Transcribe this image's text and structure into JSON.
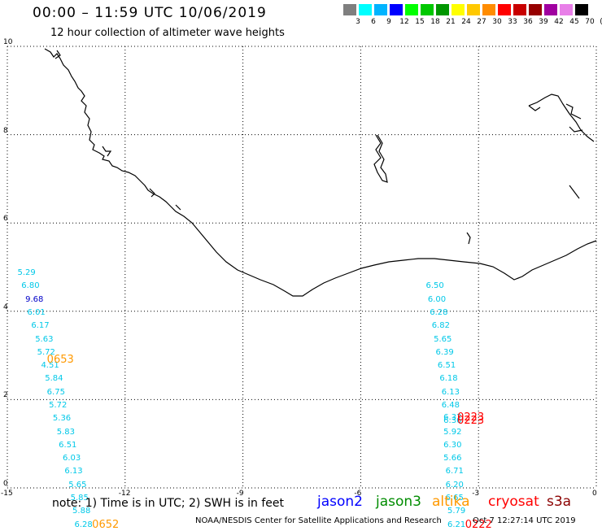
{
  "header": {
    "title": "00:00 – 11:59 UTC 10/06/2019",
    "subtitle": "12 hour collection of altimeter wave heights"
  },
  "color_scale": {
    "labels": [
      "3",
      "6",
      "9",
      "12",
      "15",
      "18",
      "21",
      "24",
      "27",
      "30",
      "33",
      "36",
      "39",
      "42",
      "45",
      "70",
      "(ft)"
    ],
    "colors": [
      "#7f7f7f",
      "#00ffff",
      "#00b4ff",
      "#0000ff",
      "#00ff00",
      "#00c800",
      "#009600",
      "#ffff00",
      "#ffc800",
      "#ff8c00",
      "#ff0000",
      "#c80000",
      "#960000",
      "#a000a0",
      "#e87fe8",
      "#000000"
    ]
  },
  "axes": {
    "x_ticks": [
      "-15",
      "-12",
      "-9",
      "-6",
      "-3",
      "0"
    ],
    "y_ticks": [
      "0",
      "2",
      "4",
      "6",
      "8",
      "10"
    ],
    "xlim": [
      -15,
      0
    ],
    "ylim": [
      0,
      10
    ]
  },
  "tracks": [
    {
      "name": "track-west",
      "satellite": "altika",
      "color": "#00c8e8",
      "points": [
        {
          "lon": -14.7,
          "lat": 4.75,
          "swh": "5.29"
        },
        {
          "lon": -14.6,
          "lat": 4.45,
          "swh": "6.80"
        },
        {
          "lon": -14.5,
          "lat": 4.15,
          "swh": "9.68",
          "color": "#0000c8"
        },
        {
          "lon": -14.45,
          "lat": 3.85,
          "swh": "6.01"
        },
        {
          "lon": -14.35,
          "lat": 3.55,
          "swh": "6.17"
        },
        {
          "lon": -14.25,
          "lat": 3.25,
          "swh": "5.63"
        },
        {
          "lon": -14.2,
          "lat": 2.95,
          "swh": "5.72"
        },
        {
          "lon": -14.1,
          "lat": 2.65,
          "swh": "4.51"
        },
        {
          "lon": -14.0,
          "lat": 2.35,
          "swh": "5.84"
        },
        {
          "lon": -13.95,
          "lat": 2.05,
          "swh": "6.75"
        },
        {
          "lon": -13.9,
          "lat": 1.75,
          "swh": "5.72"
        },
        {
          "lon": -13.8,
          "lat": 1.45,
          "swh": "5.36"
        },
        {
          "lon": -13.7,
          "lat": 1.15,
          "swh": "5.83"
        },
        {
          "lon": -13.65,
          "lat": 0.85,
          "swh": "6.51"
        },
        {
          "lon": -13.55,
          "lat": 0.55,
          "swh": "6.03"
        },
        {
          "lon": -13.5,
          "lat": 0.25,
          "swh": "6.13"
        },
        {
          "lon": -13.4,
          "lat": -0.05,
          "swh": "5.65"
        },
        {
          "lon": -13.35,
          "lat": -0.35,
          "swh": "5.85"
        },
        {
          "lon": -13.3,
          "lat": -0.65,
          "swh": "5.88"
        },
        {
          "lon": -13.25,
          "lat": -0.95,
          "swh": "6.28"
        }
      ],
      "times": [
        {
          "label": "0653",
          "lon": -13.95,
          "lat": 2.78
        },
        {
          "label": "0652",
          "lon": -12.8,
          "lat": -0.95
        }
      ]
    },
    {
      "name": "track-east",
      "satellite": "altika",
      "color": "#00c8e8",
      "points": [
        {
          "lon": -4.3,
          "lat": 4.45,
          "swh": "6.50"
        },
        {
          "lon": -4.25,
          "lat": 4.15,
          "swh": "6.00"
        },
        {
          "lon": -4.2,
          "lat": 3.85,
          "swh": "6.28"
        },
        {
          "lon": -4.15,
          "lat": 3.55,
          "swh": "6.82"
        },
        {
          "lon": -4.1,
          "lat": 3.25,
          "swh": "5.65"
        },
        {
          "lon": -4.05,
          "lat": 2.95,
          "swh": "6.39"
        },
        {
          "lon": -4.0,
          "lat": 2.65,
          "swh": "6.51"
        },
        {
          "lon": -3.95,
          "lat": 2.35,
          "swh": "6.18"
        },
        {
          "lon": -3.9,
          "lat": 2.05,
          "swh": "6.13"
        },
        {
          "lon": -3.9,
          "lat": 1.75,
          "swh": "6.48"
        },
        {
          "lon": -3.85,
          "lat": 1.47,
          "swh": "6.32"
        },
        {
          "lon": -3.85,
          "lat": 1.4,
          "swh": "6.36"
        },
        {
          "lon": -3.85,
          "lat": 1.15,
          "swh": "5.92"
        },
        {
          "lon": -3.85,
          "lat": 0.85,
          "swh": "6.30"
        },
        {
          "lon": -3.85,
          "lat": 0.55,
          "swh": "5.66"
        },
        {
          "lon": -3.8,
          "lat": 0.25,
          "swh": "6.71"
        },
        {
          "lon": -3.8,
          "lat": -0.05,
          "swh": "6.20"
        },
        {
          "lon": -3.8,
          "lat": -0.35,
          "swh": "6.65"
        },
        {
          "lon": -3.75,
          "lat": -0.65,
          "swh": "5.79"
        },
        {
          "lon": -3.75,
          "lat": -0.95,
          "swh": "6.21"
        }
      ],
      "times": []
    },
    {
      "name": "track-cryosat",
      "satellite": "cryosat",
      "color": "#ff0000",
      "points": [],
      "times": [
        {
          "label": "0223",
          "lon": -3.5,
          "lat": 1.47
        },
        {
          "label": "0223",
          "lon": -3.5,
          "lat": 1.4
        },
        {
          "label": "0222",
          "lon": -3.3,
          "lat": -0.95
        }
      ]
    }
  ],
  "satellites": [
    {
      "name": "jason2",
      "color": "#0000ff"
    },
    {
      "name": "jason3",
      "color": "#008c00"
    },
    {
      "name": "altika",
      "color": "#ff9900"
    },
    {
      "name": "cryosat",
      "color": "#ff0000"
    },
    {
      "name": "s3a",
      "color": "#8b0000"
    }
  ],
  "footer": {
    "note": "note:  1) Time is in UTC;  2) SWH is in feet",
    "credit": "NOAA/NESDIS Center for Satellite Applications and Research",
    "timestamp": "Oct  7 12:27:14 UTC 2019"
  }
}
